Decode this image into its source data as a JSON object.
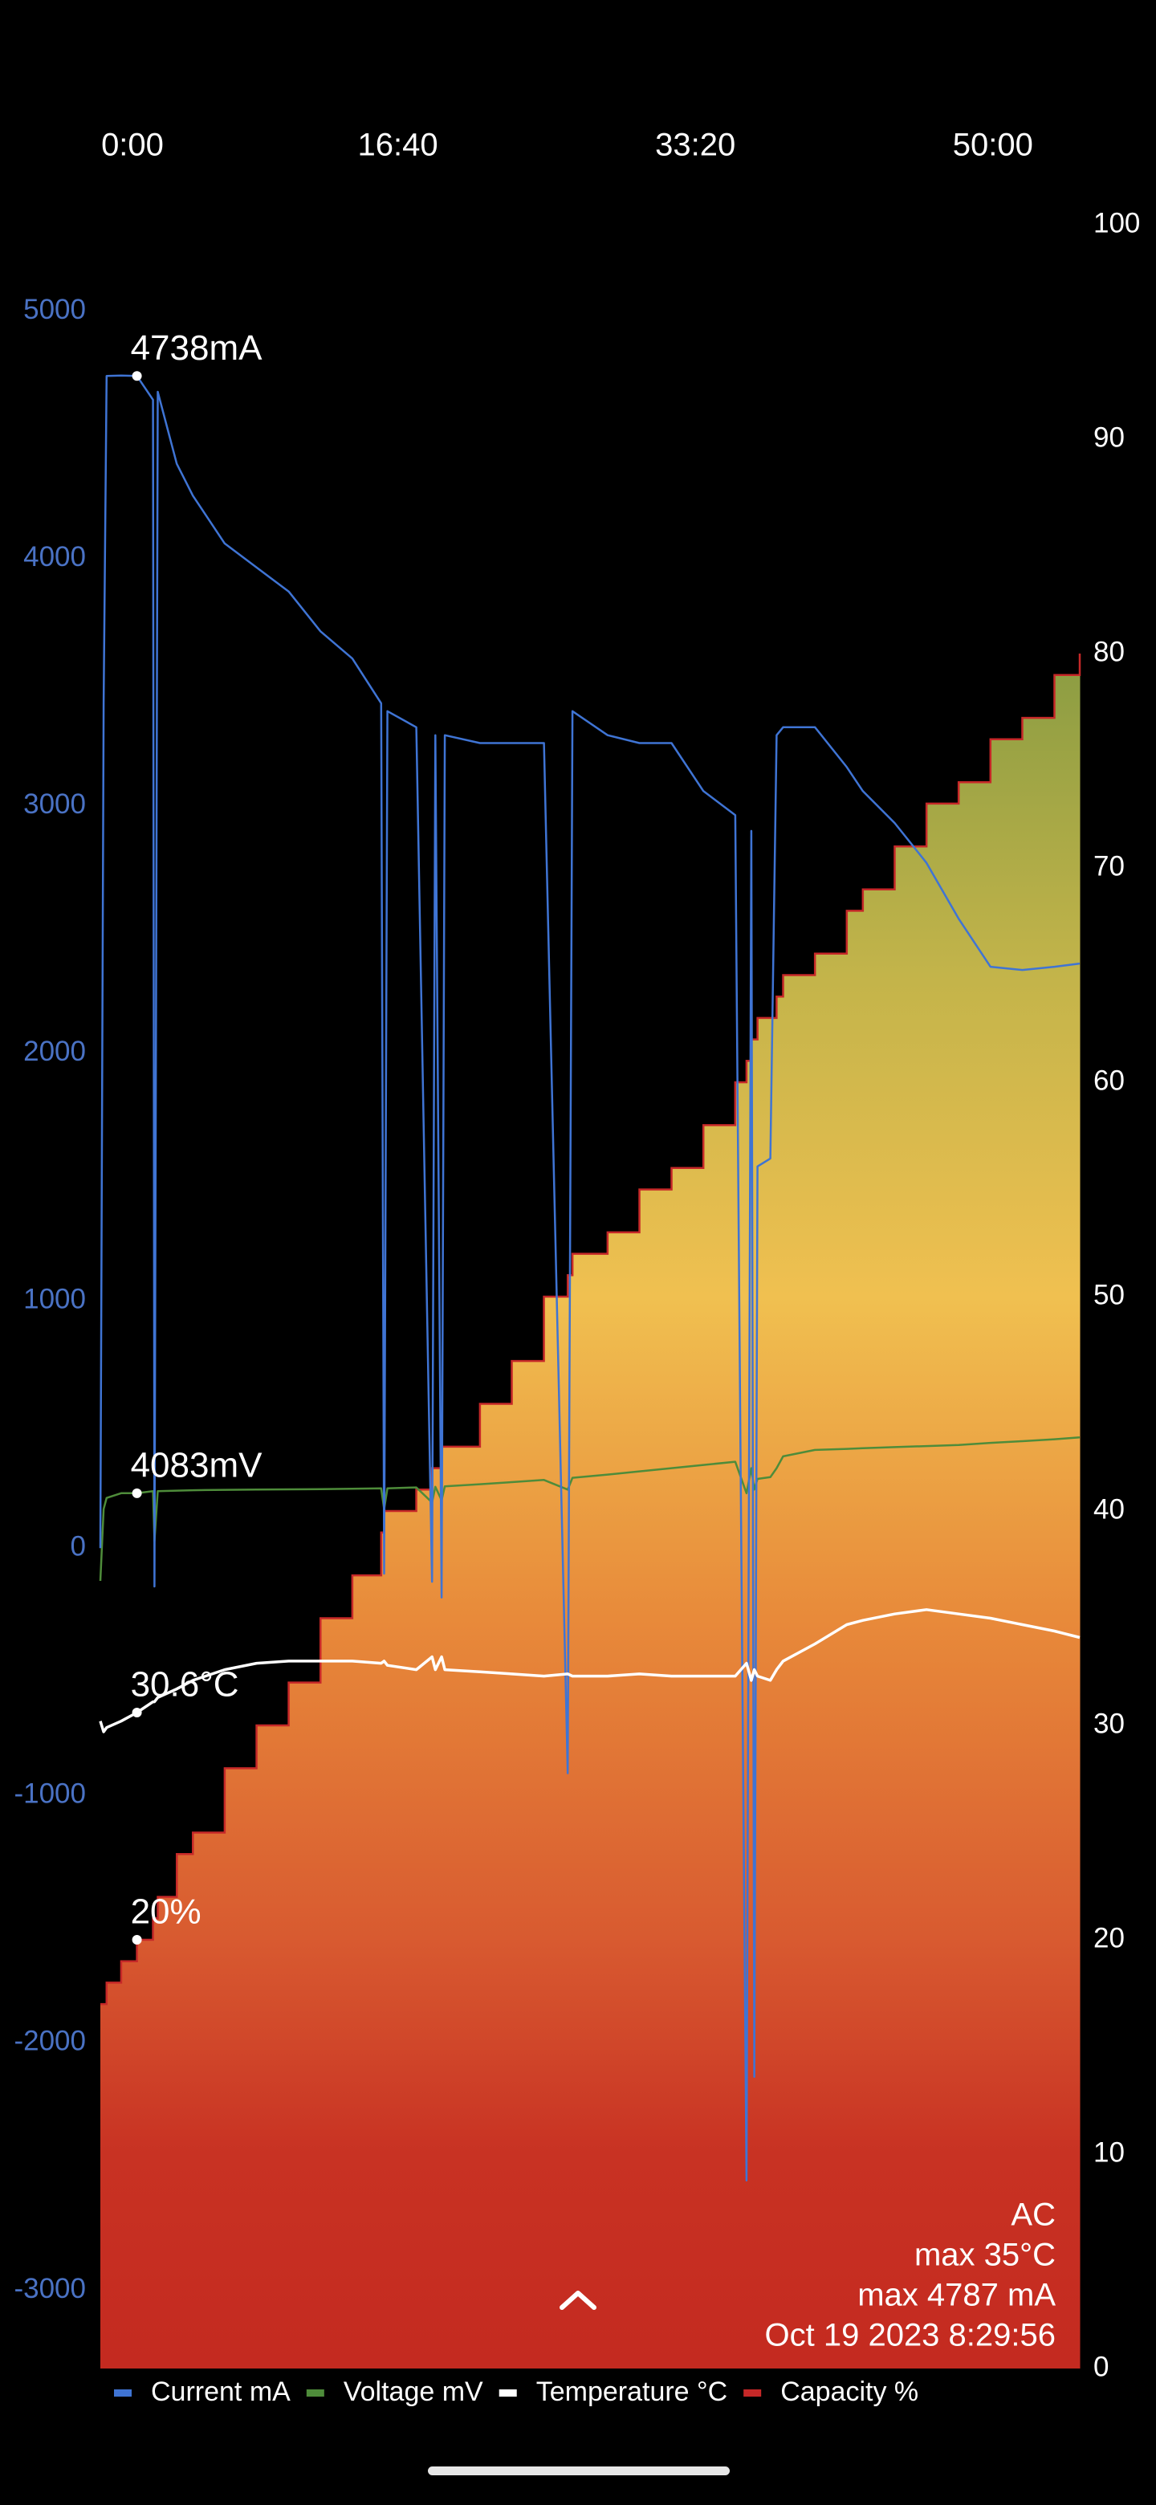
{
  "chart_data": {
    "type": "line",
    "background": "#000000",
    "x": [
      0,
      11,
      21,
      70,
      123,
      177,
      182,
      193,
      257,
      311,
      418,
      525,
      633,
      740,
      847,
      944,
      954,
      965,
      1062,
      1115,
      1126,
      1147,
      1158,
      1276,
      1383,
      1491,
      1571,
      1587,
      1705,
      1812,
      1920,
      2027,
      2134,
      2172,
      2188,
      2198,
      2209,
      2252,
      2273,
      2295,
      2402,
      2509,
      2563,
      2670,
      2777,
      2885,
      2992,
      3099,
      3207,
      3292
    ],
    "xlim": [
      0,
      3292
    ],
    "xticks": [
      {
        "value": 0,
        "label": "0:00"
      },
      {
        "value": 1000,
        "label": "16:40"
      },
      {
        "value": 2000,
        "label": "33:20"
      },
      {
        "value": 3000,
        "label": "50:00"
      }
    ],
    "ylim": [
      -3316,
      5349
    ],
    "yticks": [
      -3000,
      -2000,
      -1000,
      0,
      1000,
      2000,
      3000,
      4000,
      5000
    ],
    "ytick_color": "#4a72c4",
    "y2lim": [
      0,
      100
    ],
    "y2ticks": [
      0,
      10,
      20,
      30,
      40,
      50,
      60,
      70,
      80,
      90,
      100
    ],
    "y3lim": [
      0,
      10000
    ],
    "legend": "bottom",
    "series": [
      {
        "name": "Current mA",
        "color": "#3f74d4",
        "axis": "y",
        "values": [
          0,
          3415,
          4738,
          4740,
          4738,
          4642,
          -155,
          4674,
          4383,
          4254,
          4061,
          3964,
          3867,
          3706,
          3596,
          3415,
          -103,
          3383,
          3318,
          -136,
          3286,
          -200,
          3286,
          3254,
          3254,
          3254,
          -910,
          3383,
          3286,
          3254,
          3254,
          3060,
          2963,
          -2556,
          2899,
          -2137,
          1543,
          1575,
          3286,
          3318,
          3318,
          3157,
          3060,
          2931,
          2770,
          2544,
          2350,
          2337,
          2350,
          2363
        ],
        "value_labels": [
          null,
          null,
          null,
          null,
          "4738mA",
          null,
          null,
          null,
          null,
          null,
          null,
          null,
          null,
          null,
          null,
          null,
          null,
          null,
          null,
          null,
          null,
          null,
          null,
          null,
          null,
          null,
          null,
          null,
          null,
          null,
          null,
          null,
          null,
          null,
          null,
          null,
          null,
          null,
          null,
          null,
          null,
          null,
          null,
          null,
          null,
          null,
          null,
          null,
          null,
          null
        ]
      },
      {
        "name": "Voltage mV",
        "color": "#4e8c3a",
        "axis": "y3",
        "values": [
          3674,
          4009,
          4061,
          4083,
          4083,
          4093,
          3860,
          4093,
          4095,
          4097,
          4099,
          4100,
          4101,
          4102,
          4104,
          4106,
          4009,
          4106,
          4110,
          4040,
          4113,
          4050,
          4115,
          4125,
          4135,
          4145,
          4100,
          4155,
          4170,
          4185,
          4200,
          4215,
          4230,
          4083,
          4200,
          4100,
          4150,
          4158,
          4200,
          4255,
          4285,
          4290,
          4293,
          4298,
          4303,
          4308,
          4318,
          4326,
          4335,
          4344
        ],
        "value_labels": [
          null,
          null,
          null,
          null,
          "4083mV",
          null,
          null,
          null,
          null,
          null,
          null,
          null,
          null,
          null,
          null,
          null,
          null,
          null,
          null,
          null,
          null,
          null,
          null,
          null,
          null,
          null,
          null,
          null,
          null,
          null,
          null,
          null,
          null,
          null,
          null,
          null,
          null,
          null,
          null,
          null,
          null,
          null,
          null,
          null,
          null,
          null,
          null,
          null,
          null,
          null
        ]
      },
      {
        "name": "Temperature °C",
        "color": "#ffffff",
        "axis": "y2",
        "values": [
          30.2,
          29.7,
          29.9,
          30.2,
          30.6,
          31.1,
          31.1,
          31.3,
          31.7,
          32.1,
          32.6,
          32.9,
          33.0,
          33.0,
          33.0,
          32.9,
          33.0,
          32.8,
          32.6,
          33.2,
          32.6,
          33.2,
          32.6,
          32.5,
          32.4,
          32.3,
          32.4,
          32.3,
          32.3,
          32.4,
          32.3,
          32.3,
          32.3,
          32.9,
          32.1,
          32.6,
          32.3,
          32.1,
          32.6,
          33.0,
          33.8,
          34.7,
          34.9,
          35.2,
          35.4,
          35.2,
          35.0,
          34.7,
          34.4,
          34.1
        ],
        "value_labels": [
          null,
          null,
          null,
          null,
          "30.6°C",
          null,
          null,
          null,
          null,
          null,
          null,
          null,
          null,
          null,
          null,
          null,
          null,
          null,
          null,
          null,
          null,
          null,
          null,
          null,
          null,
          null,
          null,
          null,
          null,
          null,
          null,
          null,
          null,
          null,
          null,
          null,
          null,
          null,
          null,
          null,
          null,
          null,
          null,
          null,
          null,
          null,
          null,
          null,
          null,
          null
        ]
      },
      {
        "name": "Capacity %",
        "color": "#c62828",
        "axis": "y2",
        "area": true,
        "values": [
          17,
          17,
          18,
          19,
          20,
          21,
          21,
          22,
          24,
          25,
          28,
          30,
          32,
          35,
          37,
          39,
          40,
          40,
          41,
          42,
          42,
          43,
          43,
          45,
          47,
          50,
          51,
          52,
          53,
          55,
          56,
          58,
          60,
          61,
          62,
          62,
          63,
          63,
          64,
          65,
          66,
          68,
          69,
          71,
          73,
          74,
          76,
          77,
          79,
          80
        ],
        "value_labels": [
          null,
          null,
          null,
          null,
          "20%",
          null,
          null,
          null,
          null,
          null,
          null,
          null,
          null,
          null,
          null,
          null,
          null,
          null,
          null,
          null,
          null,
          null,
          null,
          null,
          null,
          null,
          null,
          null,
          null,
          null,
          null,
          null,
          null,
          null,
          null,
          null,
          null,
          null,
          null,
          null,
          null,
          null,
          null,
          null,
          null,
          null,
          null,
          null,
          null,
          null
        ]
      }
    ],
    "annotations": [
      "AC",
      "max 35°C",
      "max 4787 mA",
      "Oct 19 2023 8:29:56"
    ]
  }
}
